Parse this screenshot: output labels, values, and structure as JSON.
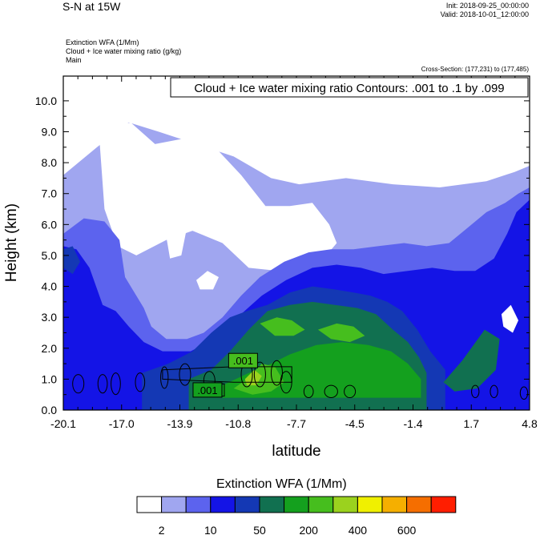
{
  "header": {
    "main_title": "S-N at 15W",
    "init": "Init: 2018-09-25_00:00:00",
    "valid": "Valid: 2018-10-01_12:00:00",
    "field_line1": "Extinction WFA   (1/Mm)",
    "field_line2": "Cloud + Ice water mixing ratio   (g/kg)",
    "field_line3": "Main",
    "cross_section": "Cross-Section: (177,231) to (177,485)"
  },
  "chart_data": {
    "type": "heatmap",
    "title": "Cloud + Ice water mixing ratio Contours: .001 to .1 by .099",
    "xlabel": "latitude",
    "ylabel": "Height (km)",
    "xlim": [
      -20.1,
      4.8
    ],
    "ylim": [
      0.0,
      10.8
    ],
    "x_ticks": [
      "-20.1",
      "-17.0",
      "-13.9",
      "-10.8",
      "-7.7",
      "-4.5",
      "-1.4",
      "1.7",
      "4.8"
    ],
    "y_ticks": [
      "0.0",
      "1.0",
      "2.0",
      "3.0",
      "4.0",
      "5.0",
      "6.0",
      "7.0",
      "8.0",
      "9.0",
      "10.0"
    ],
    "contour_labels": [
      ".001",
      ".001"
    ],
    "colorbar": {
      "title": "Extinction WFA  (1/Mm)",
      "colors": [
        "#ffffff",
        "#a0a6f0",
        "#5c63ee",
        "#1414e6",
        "#1438b4",
        "#117050",
        "#14a01e",
        "#46be1e",
        "#9bd21e",
        "#f0f000",
        "#f5af00",
        "#f56e00",
        "#ff1e00"
      ],
      "labels": [
        "2",
        "10",
        "50",
        "200",
        "400",
        "600"
      ]
    },
    "regions": [
      {
        "level": 1,
        "latitude": [
          -20.1,
          -18.3,
          -16.6,
          -15.0,
          -13.0,
          -11.0,
          -9.0,
          -7.5,
          -5.0,
          -2.5,
          0.0,
          2.5,
          4.0,
          4.8,
          4.8,
          -20.1
        ],
        "height": [
          7.6,
          8.5,
          9.3,
          9.0,
          8.6,
          8.2,
          7.5,
          7.3,
          7.5,
          7.3,
          7.2,
          7.4,
          7.7,
          7.9,
          0.0,
          0.0
        ]
      },
      {
        "level": 0,
        "latitude": [
          -18.2,
          -16.5,
          -15.2,
          -13.5,
          -12.0,
          -10.6,
          -9.3,
          -8.0,
          -6.8,
          -5.9,
          -5.5,
          -6.6,
          -8.6,
          -10.2,
          -11.6,
          -13.2,
          -14.6,
          -16.2,
          -17.2,
          -17.9,
          -18.2
        ],
        "height": [
          9.0,
          9.3,
          8.6,
          8.8,
          8.5,
          7.6,
          6.6,
          6.6,
          6.7,
          6.0,
          5.4,
          4.6,
          4.5,
          4.6,
          5.4,
          5.8,
          5.5,
          5.0,
          5.3,
          6.5,
          9.0
        ]
      },
      {
        "level": 2,
        "latitude": [
          -20.1,
          -19.0,
          -17.9,
          -17.1,
          -16.8,
          -15.8,
          -15.4,
          -14.6,
          -13.5,
          -12.6,
          -11.6,
          -10.6,
          -9.6,
          -8.3,
          -7.0,
          -5.8,
          -4.6,
          -3.3,
          -1.9,
          -0.7,
          0.5,
          1.5,
          2.5,
          3.5,
          4.2,
          4.8,
          4.8,
          -20.1
        ],
        "height": [
          5.7,
          6.2,
          6.1,
          5.5,
          4.3,
          3.3,
          2.7,
          2.3,
          2.3,
          2.5,
          3.0,
          3.7,
          4.3,
          4.8,
          5.1,
          5.2,
          5.2,
          5.3,
          5.4,
          5.3,
          5.4,
          5.9,
          6.4,
          6.7,
          7.0,
          7.2,
          0.0,
          0.0
        ]
      },
      {
        "level": 3,
        "latitude": [
          -20.1,
          -19.4,
          -18.7,
          -18.0,
          -17.3,
          -16.6,
          -15.8,
          -14.8,
          -13.3,
          -12.0,
          -10.8,
          -9.5,
          -8.2,
          -6.8,
          -5.5,
          -4.2,
          -3.0,
          -1.7,
          -0.4,
          0.8,
          1.9,
          2.9,
          3.6,
          4.1,
          4.8,
          4.8,
          -20.1
        ],
        "height": [
          5.3,
          5.2,
          4.6,
          3.4,
          3.2,
          2.7,
          2.2,
          1.9,
          1.9,
          2.3,
          3.0,
          3.7,
          4.2,
          4.6,
          4.7,
          4.6,
          4.4,
          4.5,
          4.6,
          4.5,
          4.5,
          4.9,
          5.7,
          6.4,
          6.8,
          0.0,
          0.0
        ]
      },
      {
        "level": 4,
        "latitude": [
          -15.9,
          -14.5,
          -13.2,
          -12.2,
          -11.2,
          -10.3,
          -9.2,
          -8.0,
          -6.8,
          -5.6,
          -4.6,
          -3.7,
          -2.8,
          -2.0,
          -1.2,
          -0.5,
          0.3,
          0.3,
          -15.9
        ],
        "height": [
          1.2,
          1.5,
          1.9,
          2.5,
          3.0,
          3.2,
          3.4,
          3.8,
          4.0,
          3.9,
          3.8,
          3.7,
          3.5,
          3.2,
          2.6,
          1.9,
          1.3,
          0.0,
          0.0
        ]
      },
      {
        "level": 5,
        "latitude": [
          -13.4,
          -12.2,
          -11.2,
          -10.2,
          -9.2,
          -8.0,
          -6.8,
          -5.6,
          -4.4,
          -3.4,
          -2.5,
          -1.7,
          -1.1,
          -0.7,
          -0.7,
          -13.4
        ],
        "height": [
          1.0,
          1.3,
          1.9,
          2.6,
          3.2,
          3.4,
          3.5,
          3.4,
          3.3,
          3.1,
          2.6,
          2.2,
          1.7,
          1.2,
          0.0,
          0.0
        ]
      },
      {
        "level": 6,
        "latitude": [
          -11.6,
          -10.2,
          -9.0,
          -8.0,
          -6.6,
          -5.2,
          -3.8,
          -2.6,
          -1.7,
          -1.0,
          -1.0,
          -11.6
        ],
        "height": [
          0.8,
          1.2,
          1.5,
          1.8,
          2.1,
          2.2,
          2.1,
          1.9,
          1.5,
          1.0,
          0.4,
          0.4
        ]
      },
      {
        "level": 7,
        "latitude": [
          -11.0,
          -10.3,
          -9.5,
          -8.8,
          -8.3,
          -9.0,
          -10.0,
          -11.0
        ],
        "height": [
          0.7,
          1.0,
          1.5,
          1.4,
          0.9,
          0.6,
          0.5,
          0.7
        ]
      },
      {
        "level": 7,
        "latitude": [
          -9.6,
          -8.7,
          -7.9,
          -7.2,
          -7.8,
          -8.8,
          -9.6
        ],
        "height": [
          2.8,
          3.0,
          2.9,
          2.6,
          2.4,
          2.4,
          2.8
        ]
      },
      {
        "level": 7,
        "latitude": [
          -6.5,
          -5.5,
          -4.6,
          -4.0,
          -4.8,
          -5.8,
          -6.5
        ],
        "height": [
          2.6,
          2.8,
          2.7,
          2.4,
          2.2,
          2.3,
          2.6
        ]
      },
      {
        "level": 8,
        "latitude": [
          -10.4,
          -9.9,
          -9.5,
          -9.8,
          -10.3,
          -10.4
        ],
        "height": [
          1.0,
          1.3,
          1.1,
          0.8,
          0.8,
          1.0
        ]
      },
      {
        "level": 5,
        "latitude": [
          0.2,
          1.2,
          2.4,
          3.2,
          3.0,
          2.0,
          0.8,
          0.2
        ],
        "height": [
          0.9,
          1.6,
          2.6,
          2.3,
          1.3,
          0.7,
          0.6,
          0.9
        ]
      },
      {
        "level": 0,
        "latitude": [
          3.3,
          3.8,
          4.2,
          3.9,
          3.4,
          3.3
        ],
        "height": [
          3.1,
          3.4,
          2.9,
          2.5,
          2.7,
          3.1
        ]
      },
      {
        "level": 0,
        "latitude": [
          -13.0,
          -12.4,
          -11.8,
          -12.1,
          -12.8,
          -13.0
        ],
        "height": [
          4.2,
          4.5,
          4.3,
          3.9,
          3.9,
          4.2
        ]
      },
      {
        "level": 0,
        "latitude": [
          -14.6,
          -14.0,
          -13.5,
          -13.8,
          -14.4,
          -14.6
        ],
        "height": [
          5.6,
          6.2,
          5.9,
          5.0,
          4.9,
          5.6
        ]
      },
      {
        "level": 4,
        "latitude": [
          -20.1,
          -19.6,
          -19.2,
          -19.6,
          -20.1
        ],
        "height": [
          5.2,
          5.3,
          4.8,
          4.4,
          4.6
        ]
      }
    ],
    "ellipses": [
      {
        "latitude": -19.3,
        "height": 0.85,
        "rx": 0.3,
        "ry": 0.3
      },
      {
        "latitude": -18.0,
        "height": 0.85,
        "rx": 0.25,
        "ry": 0.3
      },
      {
        "latitude": -17.3,
        "height": 0.85,
        "rx": 0.25,
        "ry": 0.35
      },
      {
        "latitude": -16.0,
        "height": 0.9,
        "rx": 0.25,
        "ry": 0.3
      },
      {
        "latitude": -14.7,
        "height": 1.05,
        "rx": 0.2,
        "ry": 0.35
      },
      {
        "latitude": -13.6,
        "height": 1.15,
        "rx": 0.3,
        "ry": 0.35
      },
      {
        "latitude": -12.3,
        "height": 0.95,
        "rx": 0.3,
        "ry": 0.3
      },
      {
        "latitude": -10.3,
        "height": 1.15,
        "rx": 0.3,
        "ry": 0.4
      },
      {
        "latitude": -9.6,
        "height": 1.15,
        "rx": 0.3,
        "ry": 0.4
      },
      {
        "latitude": -8.7,
        "height": 1.2,
        "rx": 0.3,
        "ry": 0.4
      },
      {
        "latitude": -8.2,
        "height": 0.9,
        "rx": 0.3,
        "ry": 0.35
      },
      {
        "latitude": -7.0,
        "height": 0.6,
        "rx": 0.25,
        "ry": 0.2
      },
      {
        "latitude": -5.8,
        "height": 0.6,
        "rx": 0.35,
        "ry": 0.2
      },
      {
        "latitude": -4.8,
        "height": 0.6,
        "rx": 0.3,
        "ry": 0.2
      },
      {
        "latitude": 1.9,
        "height": 0.6,
        "rx": 0.2,
        "ry": 0.2
      },
      {
        "latitude": 2.9,
        "height": 0.6,
        "rx": 0.2,
        "ry": 0.2
      },
      {
        "latitude": 4.5,
        "height": 0.55,
        "rx": 0.2,
        "ry": 0.2
      }
    ],
    "contour_rings": [
      {
        "latitude": [
          -14.8,
          -11.0,
          -7.9,
          -7.9,
          -11.0,
          -14.8,
          -14.8
        ],
        "height": [
          1.3,
          1.4,
          1.4,
          0.9,
          0.9,
          1.0,
          1.3
        ]
      },
      {
        "latitude": [
          -13.0,
          -11.5,
          -11.5,
          -13.0,
          -13.0
        ],
        "height": [
          0.85,
          0.85,
          0.45,
          0.45,
          0.85
        ]
      }
    ],
    "contour_label_positions": [
      {
        "latitude": -10.5,
        "height": 1.6
      },
      {
        "latitude": -12.4,
        "height": 0.65
      }
    ]
  }
}
